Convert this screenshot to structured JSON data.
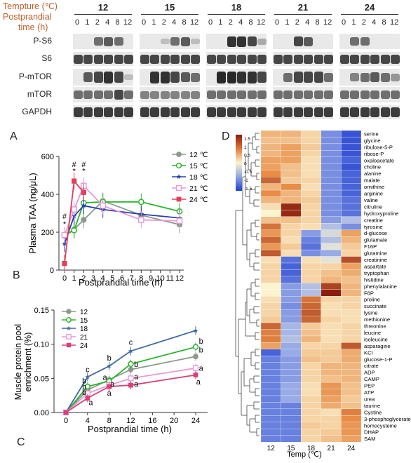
{
  "western_blot": {
    "header_line1": "Tempture (℃)",
    "header_line2": "Postprandial",
    "header_line3": "time (h)",
    "groups": [
      "12",
      "15",
      "18",
      "21",
      "24"
    ],
    "timepoints": [
      "0",
      "1",
      "2",
      "4",
      "8",
      "12"
    ],
    "proteins": [
      "P-S6",
      "S6",
      "P-mTOR",
      "mTOR",
      "GAPDH"
    ]
  },
  "panel_labels": {
    "A": "A",
    "B": "B",
    "C": "C",
    "D": "D"
  },
  "chart_data": [
    {
      "type": "line",
      "ylabel": "Plasma TAA (ng/μL)",
      "xlabel": "Postprandial time (h)",
      "xlim": [
        0,
        12
      ],
      "ylim": [
        0,
        600
      ],
      "xticks": [
        "0",
        "1",
        "2",
        "3",
        "4",
        "5",
        "6",
        "7",
        "8",
        "9",
        "10",
        "11",
        "12"
      ],
      "yticks": [
        "0",
        "200",
        "400",
        "600"
      ],
      "legend_position": "top-right",
      "series": [
        {
          "name": "12 ℃",
          "color": "#8c9a8c",
          "marker": "circle-filled",
          "x": [
            0,
            1,
            2,
            4,
            8,
            12
          ],
          "y": [
            180,
            215,
            265,
            365,
            290,
            240
          ]
        },
        {
          "name": "15 ℃",
          "color": "#2ab52a",
          "marker": "circle-open",
          "x": [
            0,
            1,
            2,
            4,
            8,
            12
          ],
          "y": [
            185,
            210,
            355,
            360,
            360,
            310
          ]
        },
        {
          "name": "18 ℃",
          "color": "#2a3fa8",
          "marker": "star",
          "x": [
            0,
            1,
            2,
            4,
            8,
            12
          ],
          "y": [
            140,
            285,
            340,
            320,
            295,
            275
          ]
        },
        {
          "name": "21 ℃",
          "color": "#e899d8",
          "marker": "square-open",
          "x": [
            0,
            1,
            2,
            4,
            8,
            12
          ],
          "y": [
            185,
            320,
            445,
            340,
            265,
            260
          ]
        },
        {
          "name": "24 ℃",
          "color": "#e0405a",
          "marker": "square-filled",
          "x": [
            0,
            1,
            2
          ],
          "y": [
            35,
            470,
            410
          ]
        }
      ],
      "annotations": [
        {
          "text": "#",
          "x": 0,
          "y": 285
        },
        {
          "text": "*",
          "x": 0,
          "y": 245
        },
        {
          "text": "#",
          "x": 1,
          "y": 560
        },
        {
          "text": "*",
          "x": 1,
          "y": 525
        },
        {
          "text": "#",
          "x": 2,
          "y": 560
        },
        {
          "text": "*",
          "x": 2,
          "y": 525
        }
      ]
    },
    {
      "type": "line",
      "ylabel": "Muscle protein pool enrichment (%)",
      "ylabel_line1": "Muscle protein pool",
      "ylabel_line2": "enrichment (%)",
      "xlabel": "Postprandial time (h)",
      "xlim": [
        0,
        24
      ],
      "ylim": [
        0,
        0.15
      ],
      "xticks": [
        "0",
        "4",
        "8",
        "12",
        "16",
        "20",
        "24"
      ],
      "yticks": [
        "0.00",
        "0.05",
        "0.10",
        "0.15"
      ],
      "legend_position": "top-left",
      "series": [
        {
          "name": "12",
          "color": "#8c9a8c",
          "marker": "circle-filled",
          "x": [
            0,
            4,
            8,
            12,
            24
          ],
          "y": [
            0,
            0.033,
            0.048,
            0.063,
            0.082
          ]
        },
        {
          "name": "15",
          "color": "#2ab52a",
          "marker": "circle-open",
          "x": [
            0,
            4,
            8,
            12,
            24
          ],
          "y": [
            0,
            0.038,
            0.046,
            0.071,
            0.096
          ]
        },
        {
          "name": "18",
          "color": "#3e6a9e",
          "marker": "star",
          "x": [
            0,
            4,
            8,
            12,
            24
          ],
          "y": [
            0,
            0.052,
            0.068,
            0.09,
            0.12
          ]
        },
        {
          "name": "21",
          "color": "#e899d8",
          "marker": "square-open",
          "x": [
            0,
            4,
            8,
            12,
            24
          ],
          "y": [
            0,
            0.028,
            0.04,
            0.05,
            0.065
          ]
        },
        {
          "name": "24",
          "color": "#d9407a",
          "marker": "square-filled",
          "x": [
            0,
            4,
            8,
            12,
            24
          ],
          "y": [
            0,
            0.021,
            0.038,
            0.04,
            0.055
          ]
        }
      ],
      "annotations": [
        {
          "text": "c",
          "x": 4,
          "y": 0.063
        },
        {
          "text": "b",
          "x": 3.4,
          "y": 0.047
        },
        {
          "text": "b",
          "x": 3.4,
          "y": 0.038
        },
        {
          "text": "b",
          "x": 3.4,
          "y": 0.03
        },
        {
          "text": "a",
          "x": 4.6,
          "y": 0.015
        },
        {
          "text": "b",
          "x": 8,
          "y": 0.08
        },
        {
          "text": "a",
          "x": 7.2,
          "y": 0.052
        },
        {
          "text": "a",
          "x": 8.6,
          "y": 0.042
        },
        {
          "text": "a",
          "x": 8,
          "y": 0.029
        },
        {
          "text": "c",
          "x": 12,
          "y": 0.103
        },
        {
          "text": "b",
          "x": 13,
          "y": 0.071
        },
        {
          "text": "a",
          "x": 13,
          "y": 0.053
        },
        {
          "text": "a",
          "x": 13,
          "y": 0.042
        },
        {
          "text": "b",
          "x": 25,
          "y": 0.105
        },
        {
          "text": "b",
          "x": 25,
          "y": 0.092
        },
        {
          "text": "a",
          "x": 25,
          "y": 0.065
        },
        {
          "text": "a",
          "x": 24.5,
          "y": 0.045
        }
      ]
    },
    {
      "type": "heatmap",
      "xlabel": "Temp (℃)",
      "columns": [
        "12",
        "15",
        "18",
        "21",
        "24"
      ],
      "colorbar_ticks": [
        "1.5",
        "1",
        "0.5",
        "0",
        "-0.5",
        "-1",
        "-1.5"
      ],
      "colorbar_range": [
        -1.5,
        1.5
      ],
      "rows": [
        "serine",
        "glycine",
        "ribulose-5-P",
        "ribose-P",
        "oxaloacetate",
        "choline",
        "alanine",
        "malate",
        "ornithine",
        "arginine",
        "valine",
        "citruline",
        "hydroxyproline",
        "creatine",
        "tyrosine",
        "d-glucose",
        "glutamate",
        "F16P",
        "glutamine",
        "creatinine",
        "aspartate",
        "tryptophan",
        "histidine",
        "phenylalanine",
        "F6P",
        "proline",
        "succinate",
        "lysine",
        "methionine",
        "threonine",
        "leucine",
        "isoleucine",
        "asparagine",
        "KCl",
        "glucose-1-P",
        "citrate",
        "ADP",
        "CAMP",
        "PEP",
        "ATP",
        "urea",
        "taurine",
        "Cystine",
        "3-phosphoglycerate",
        "homocysteine",
        "DHAP",
        "SAM"
      ],
      "values": [
        [
          0.6,
          0.6,
          0.3,
          -1.0,
          -1.4
        ],
        [
          0.5,
          0.5,
          0.3,
          -1.0,
          -1.4
        ],
        [
          0.6,
          0.8,
          0.4,
          -1.0,
          -1.4
        ],
        [
          0.6,
          0.8,
          0.3,
          -1.0,
          -1.4
        ],
        [
          0.8,
          0.8,
          0.2,
          -1.0,
          -1.3
        ],
        [
          0.8,
          0.5,
          0.2,
          -1.0,
          -1.4
        ],
        [
          1.0,
          0.5,
          0.2,
          -1.0,
          -1.3
        ],
        [
          1.3,
          0.4,
          0.3,
          -1.0,
          -1.3
        ],
        [
          0.6,
          1.0,
          0.2,
          -1.0,
          -1.3
        ],
        [
          1.0,
          0.6,
          0.3,
          -1.0,
          -1.3
        ],
        [
          0.6,
          0.6,
          0.4,
          -1.0,
          -1.2
        ],
        [
          0.2,
          1.8,
          0.3,
          -1.0,
          -1.2
        ],
        [
          0.0,
          1.8,
          0.3,
          -1.0,
          -1.2
        ],
        [
          0.5,
          0.5,
          0.3,
          -0.9,
          -0.6
        ],
        [
          1.2,
          0.3,
          0.2,
          -0.6,
          -1.0
        ],
        [
          0.9,
          0.3,
          -0.9,
          -0.3,
          0.8
        ],
        [
          1.3,
          0.2,
          -1.1,
          -0.6,
          0.6
        ],
        [
          0.9,
          0.4,
          -1.2,
          -0.2,
          0.4
        ],
        [
          1.4,
          0.2,
          -1.0,
          -0.8,
          0.3
        ],
        [
          0.2,
          -1.2,
          0.2,
          -0.2,
          1.5
        ],
        [
          0.3,
          -1.3,
          0.3,
          0.3,
          0.8
        ],
        [
          0.3,
          -1.3,
          0.3,
          0.5,
          0.7
        ],
        [
          0.3,
          -1.2,
          0.3,
          0.6,
          0.5
        ],
        [
          0.0,
          -0.9,
          -0.6,
          1.6,
          0.6
        ],
        [
          0.0,
          -0.9,
          -0.6,
          1.9,
          0.6
        ],
        [
          0.2,
          -0.9,
          1.2,
          0.3,
          0.3
        ],
        [
          0.3,
          -1.0,
          1.3,
          0.2,
          0.3
        ],
        [
          0.3,
          -0.9,
          1.4,
          0.2,
          0.2
        ],
        [
          0.4,
          -0.9,
          1.3,
          0.3,
          0.2
        ],
        [
          1.3,
          -0.7,
          0.4,
          0.2,
          0.3
        ],
        [
          1.1,
          -0.7,
          0.5,
          0.2,
          0.3
        ],
        [
          1.1,
          -0.6,
          0.6,
          0.2,
          0.3
        ],
        [
          0.8,
          -0.8,
          0.3,
          0.3,
          1.4
        ],
        [
          -1.3,
          -0.8,
          0.4,
          0.4,
          0.7
        ],
        [
          -1.1,
          -0.9,
          0.5,
          0.4,
          0.7
        ],
        [
          -1.1,
          -0.9,
          0.3,
          0.6,
          0.6
        ],
        [
          -1.1,
          -0.9,
          0.3,
          0.6,
          0.6
        ],
        [
          -1.1,
          -0.9,
          0.3,
          0.5,
          0.6
        ],
        [
          -1.1,
          -0.8,
          0.2,
          0.9,
          0.5
        ],
        [
          -1.1,
          -0.8,
          0.2,
          0.9,
          0.5
        ],
        [
          -1.1,
          -0.8,
          0.3,
          0.8,
          0.4
        ],
        [
          -1.1,
          -1.1,
          0.3,
          0.7,
          0.5
        ],
        [
          -1.1,
          -1.1,
          0.3,
          0.2,
          1.1
        ],
        [
          -1.1,
          -1.1,
          0.3,
          0.3,
          1.0
        ],
        [
          -1.1,
          -1.1,
          0.4,
          0.3,
          0.9
        ],
        [
          -1.1,
          -1.1,
          0.3,
          0.4,
          0.9
        ],
        [
          -1.1,
          -1.1,
          0.3,
          0.5,
          0.8
        ]
      ]
    }
  ]
}
